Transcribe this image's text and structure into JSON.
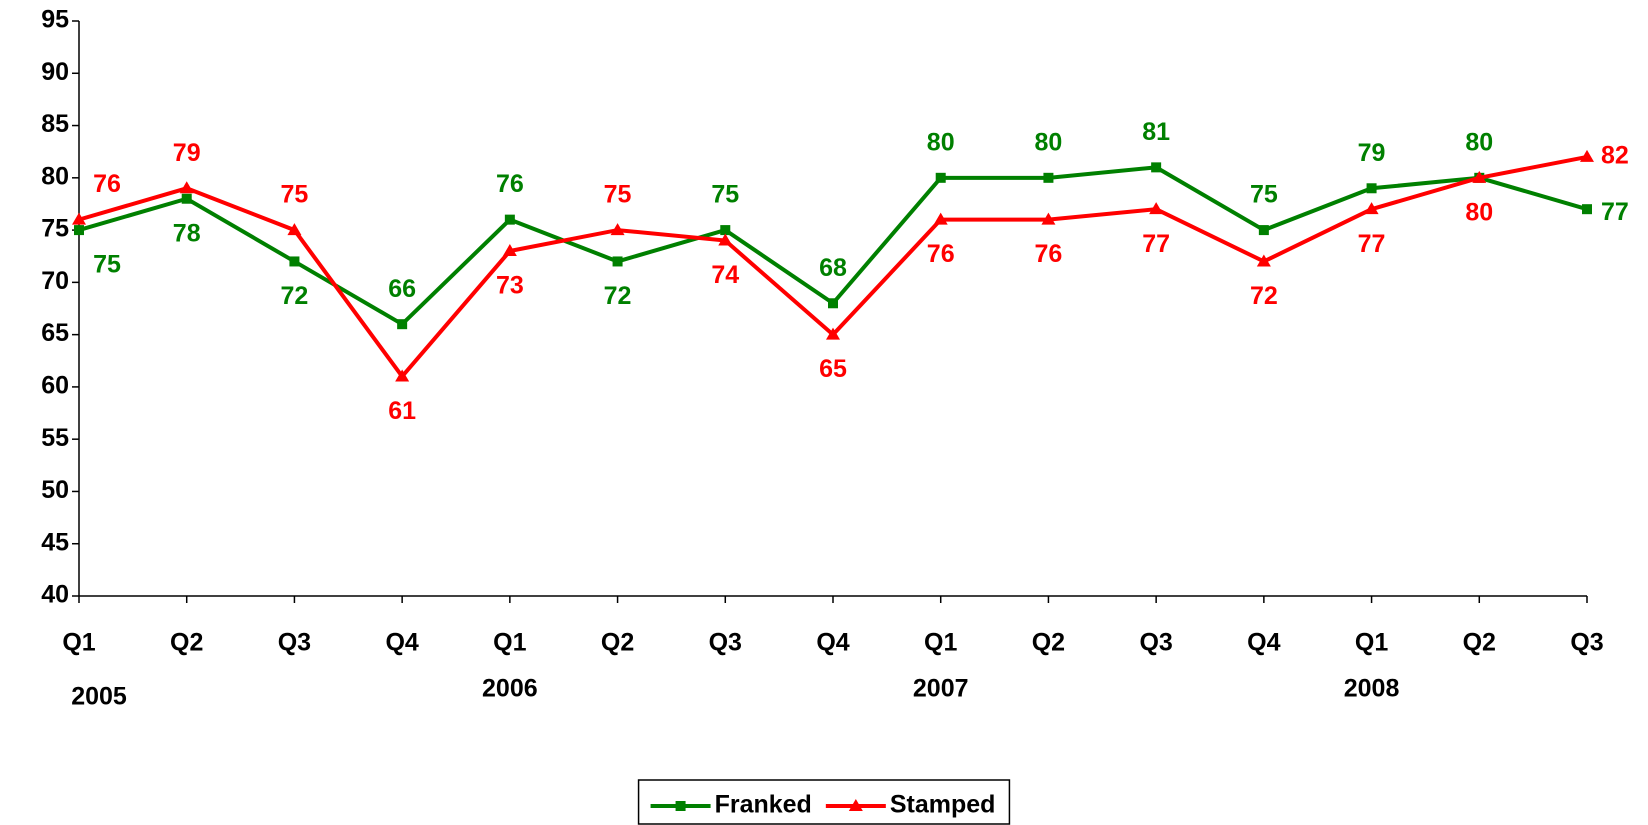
{
  "chart_data": {
    "type": "line",
    "categories": [
      "Q1",
      "Q2",
      "Q3",
      "Q4",
      "Q1",
      "Q2",
      "Q3",
      "Q4",
      "Q1",
      "Q2",
      "Q3",
      "Q4",
      "Q1",
      "Q2",
      "Q3"
    ],
    "category_groups": [
      "2005",
      null,
      null,
      null,
      "2006",
      null,
      null,
      null,
      "2007",
      null,
      null,
      null,
      "2008",
      null,
      null
    ],
    "series": [
      {
        "name": "Franked",
        "color": "#008000",
        "marker": "square",
        "values": [
          75,
          78,
          72,
          66,
          76,
          72,
          75,
          68,
          80,
          80,
          81,
          75,
          79,
          80,
          77
        ]
      },
      {
        "name": "Stamped",
        "color": "#ff0000",
        "marker": "triangle",
        "values": [
          76,
          79,
          75,
          61,
          73,
          75,
          74,
          65,
          76,
          76,
          77,
          72,
          77,
          80,
          82
        ]
      }
    ],
    "ylim": [
      40,
      95
    ],
    "yticks": [
      40,
      45,
      50,
      55,
      60,
      65,
      70,
      75,
      80,
      85,
      90,
      95
    ],
    "grid": false,
    "legend": "bottom"
  }
}
